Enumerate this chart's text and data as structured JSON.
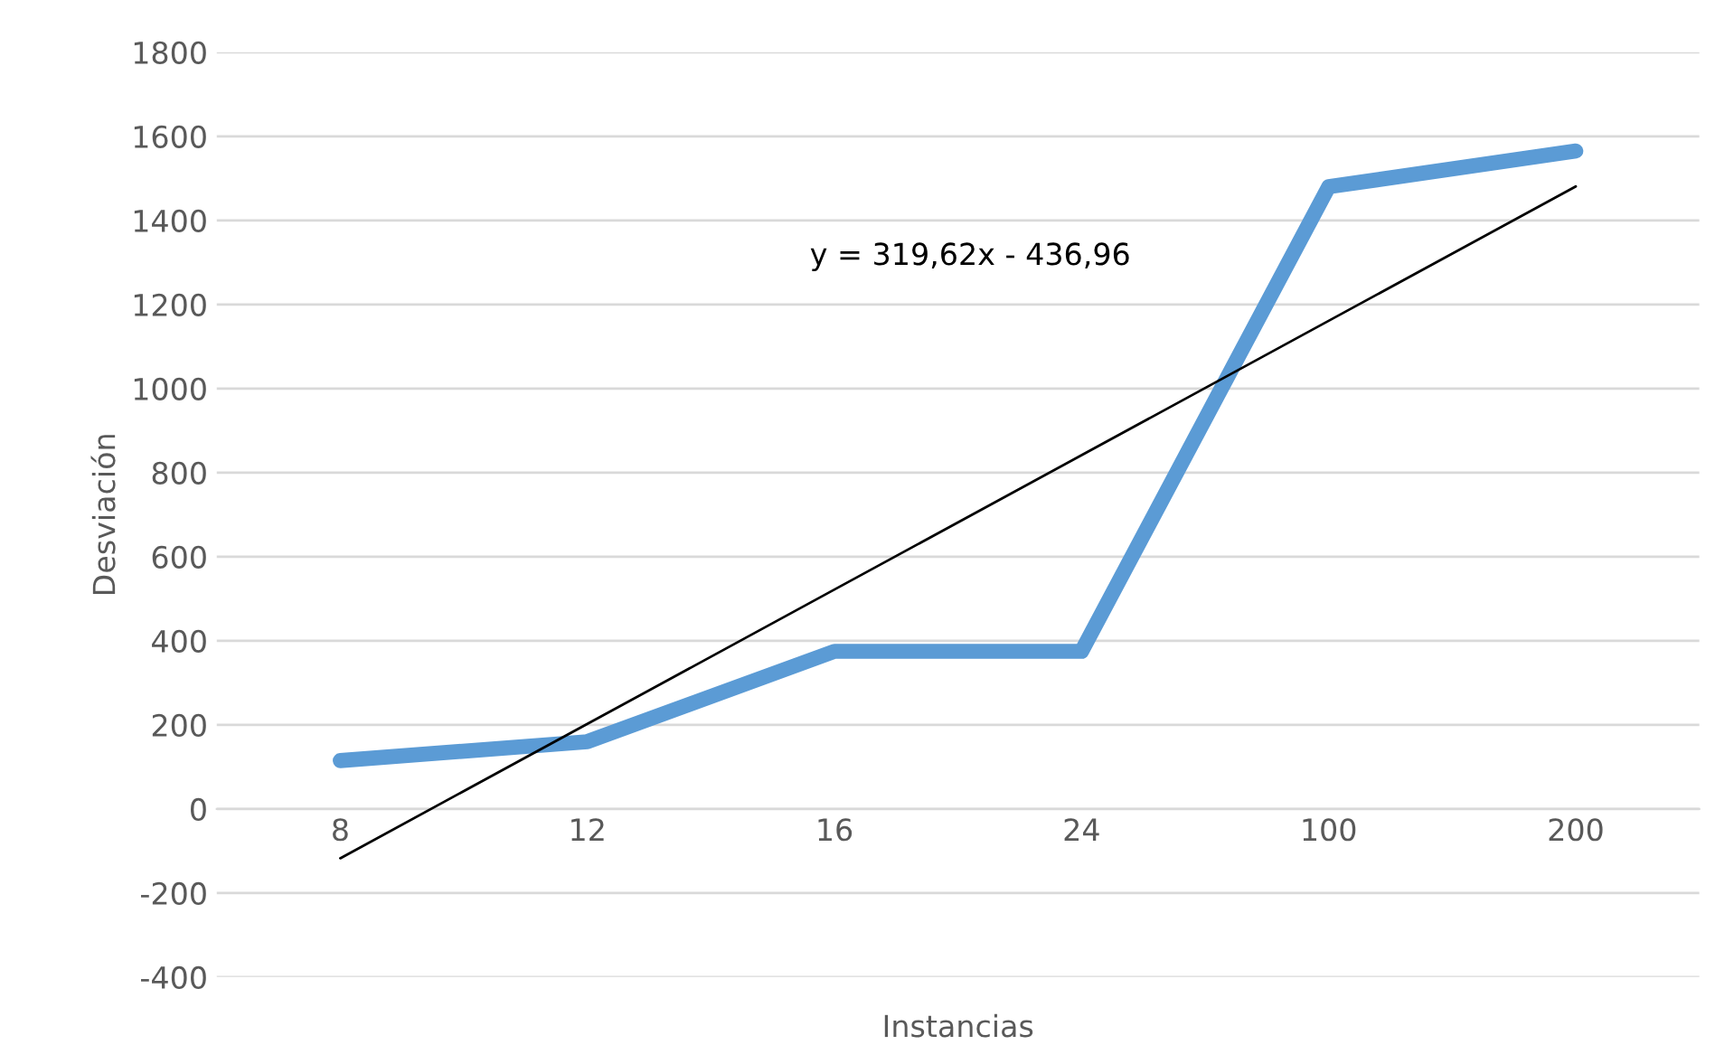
{
  "chart_data": {
    "type": "line",
    "xlabel": "Instancias",
    "ylabel": "Desviación",
    "categories": [
      "8",
      "12",
      "16",
      "24",
      "100",
      "200"
    ],
    "series": [
      {
        "color": "#5b9bd5",
        "values": [
          115,
          160,
          375,
          375,
          1480,
          1565
        ]
      },
      {
        "type": "line",
        "color": "#000000",
        "values": [
          -117.34,
          202.28,
          521.9,
          841.52,
          1161.14,
          1480.76
        ]
      }
    ],
    "annotations": [
      "y = 319,62x - 436,96"
    ],
    "ylim": [
      -400,
      1800
    ],
    "yticks": [
      -400,
      -200,
      0,
      200,
      400,
      600,
      800,
      1000,
      1200,
      1400,
      1600,
      1800
    ],
    "grid": "y",
    "legend": false
  }
}
